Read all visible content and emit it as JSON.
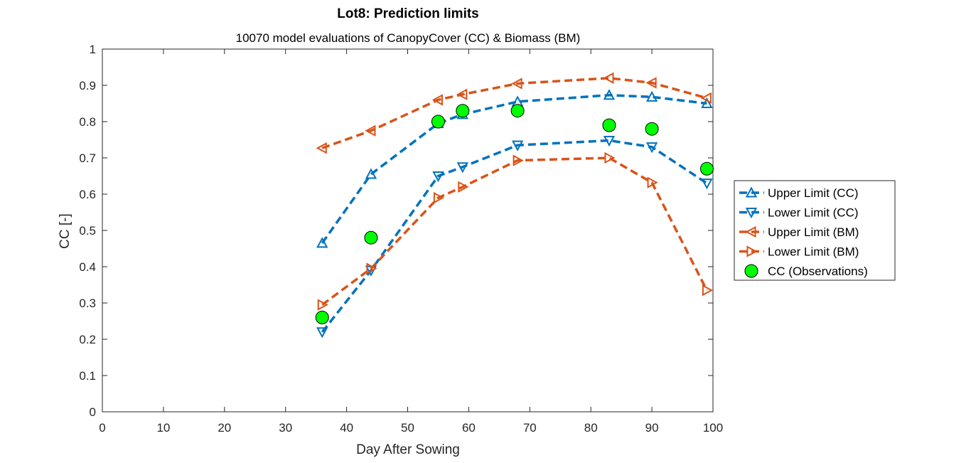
{
  "chart_data": {
    "type": "line",
    "title": "Lot8: Prediction limits",
    "subtitle": "10070 model evaluations of CanopyCover (CC) & Biomass (BM)",
    "xlabel": "Day After Sowing",
    "ylabel": "CC [-]",
    "xlim": [
      0,
      100
    ],
    "ylim": [
      0,
      1
    ],
    "xticks": [
      "0",
      "10",
      "20",
      "30",
      "40",
      "50",
      "60",
      "70",
      "80",
      "90",
      "100"
    ],
    "yticks": [
      "0",
      "0.1",
      "0.2",
      "0.3",
      "0.4",
      "0.5",
      "0.6",
      "0.7",
      "0.8",
      "0.9",
      "1"
    ],
    "grid": false,
    "legend_position": "right",
    "colors": {
      "cc": "#0072BD",
      "bm": "#D95319",
      "obs": "#00FF00"
    },
    "series": [
      {
        "name": "Upper Limit (CC)",
        "marker": "triangle-up",
        "color": "#0072BD",
        "x": [
          36,
          44,
          55,
          59,
          68,
          83,
          90,
          99
        ],
        "y": [
          0.465,
          0.655,
          0.795,
          0.82,
          0.855,
          0.873,
          0.868,
          0.85
        ]
      },
      {
        "name": "Lower Limit (CC)",
        "marker": "triangle-down",
        "color": "#0072BD",
        "x": [
          36,
          44,
          55,
          59,
          68,
          83,
          90,
          99
        ],
        "y": [
          0.22,
          0.39,
          0.65,
          0.675,
          0.735,
          0.748,
          0.73,
          0.63
        ]
      },
      {
        "name": "Upper Limit (BM)",
        "marker": "triangle-left",
        "color": "#D95319",
        "x": [
          36,
          44,
          55,
          59,
          68,
          83,
          90,
          99
        ],
        "y": [
          0.727,
          0.775,
          0.86,
          0.875,
          0.905,
          0.92,
          0.907,
          0.865
        ]
      },
      {
        "name": "Lower Limit (BM)",
        "marker": "triangle-right",
        "color": "#D95319",
        "x": [
          36,
          44,
          55,
          59,
          68,
          83,
          90,
          99
        ],
        "y": [
          0.295,
          0.395,
          0.59,
          0.62,
          0.693,
          0.7,
          0.632,
          0.335
        ]
      },
      {
        "name": "CC (Observations)",
        "marker": "circle",
        "color": "#00FF00",
        "x": [
          36,
          44,
          55,
          59,
          68,
          83,
          90,
          99
        ],
        "y": [
          0.26,
          0.48,
          0.8,
          0.83,
          0.83,
          0.79,
          0.78,
          0.67
        ]
      }
    ]
  }
}
